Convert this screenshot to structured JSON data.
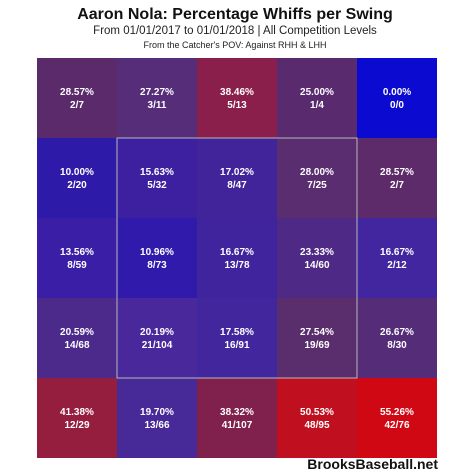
{
  "chart_data": {
    "type": "heatmap",
    "title": "Aaron Nola: Percentage Whiffs per Swing",
    "subtitle": "From 01/01/2017 to 01/01/2018 | All Competition Levels",
    "note": "From the Catcher's POV:  Against RHH & LHH",
    "rows": 5,
    "cols": 5,
    "strike_zone": "inner 3x3 cells",
    "cells": [
      [
        {
          "pct": "28.57%",
          "count": "2/7",
          "value": 28.57,
          "color": "#5a2a6a"
        },
        {
          "pct": "27.27%",
          "count": "3/11",
          "value": 27.27,
          "color": "#562d78"
        },
        {
          "pct": "38.46%",
          "count": "5/13",
          "value": 38.46,
          "color": "#8a1f4c"
        },
        {
          "pct": "25.00%",
          "count": "1/4",
          "value": 25.0,
          "color": "#592a6e"
        },
        {
          "pct": "0.00%",
          "count": "0/0",
          "value": 0.0,
          "color": "#0a0ad0"
        }
      ],
      [
        {
          "pct": "10.00%",
          "count": "2/20",
          "value": 10.0,
          "color": "#2e1aa8"
        },
        {
          "pct": "15.63%",
          "count": "5/32",
          "value": 15.63,
          "color": "#3d20a0"
        },
        {
          "pct": "17.02%",
          "count": "8/47",
          "value": 17.02,
          "color": "#41239a"
        },
        {
          "pct": "28.00%",
          "count": "7/25",
          "value": 28.0,
          "color": "#5a2d70"
        },
        {
          "pct": "28.57%",
          "count": "2/7",
          "value": 28.57,
          "color": "#5d2a6a"
        }
      ],
      [
        {
          "pct": "13.56%",
          "count": "8/59",
          "value": 13.56,
          "color": "#3a1ea6"
        },
        {
          "pct": "10.96%",
          "count": "8/73",
          "value": 10.96,
          "color": "#2f1aac"
        },
        {
          "pct": "16.67%",
          "count": "13/78",
          "value": 16.67,
          "color": "#40249e"
        },
        {
          "pct": "23.33%",
          "count": "14/60",
          "value": 23.33,
          "color": "#4e2a86"
        },
        {
          "pct": "16.67%",
          "count": "2/12",
          "value": 16.67,
          "color": "#4226a0"
        }
      ],
      [
        {
          "pct": "20.59%",
          "count": "14/68",
          "value": 20.59,
          "color": "#4b2a8c"
        },
        {
          "pct": "20.19%",
          "count": "21/104",
          "value": 20.19,
          "color": "#48289a"
        },
        {
          "pct": "17.58%",
          "count": "16/91",
          "value": 17.58,
          "color": "#42269e"
        },
        {
          "pct": "27.54%",
          "count": "19/69",
          "value": 27.54,
          "color": "#5a2d6c"
        },
        {
          "pct": "26.67%",
          "count": "8/30",
          "value": 26.67,
          "color": "#542c78"
        }
      ],
      [
        {
          "pct": "41.38%",
          "count": "12/29",
          "value": 41.38,
          "color": "#951d3e"
        },
        {
          "pct": "19.70%",
          "count": "13/66",
          "value": 19.7,
          "color": "#472998"
        },
        {
          "pct": "38.32%",
          "count": "41/107",
          "value": 38.32,
          "color": "#7f214c"
        },
        {
          "pct": "50.53%",
          "count": "48/95",
          "value": 50.53,
          "color": "#c01020"
        },
        {
          "pct": "55.26%",
          "count": "42/76",
          "value": 55.26,
          "color": "#d00814"
        }
      ]
    ]
  },
  "footer": {
    "watermark": "BrooksBaseball.net"
  }
}
